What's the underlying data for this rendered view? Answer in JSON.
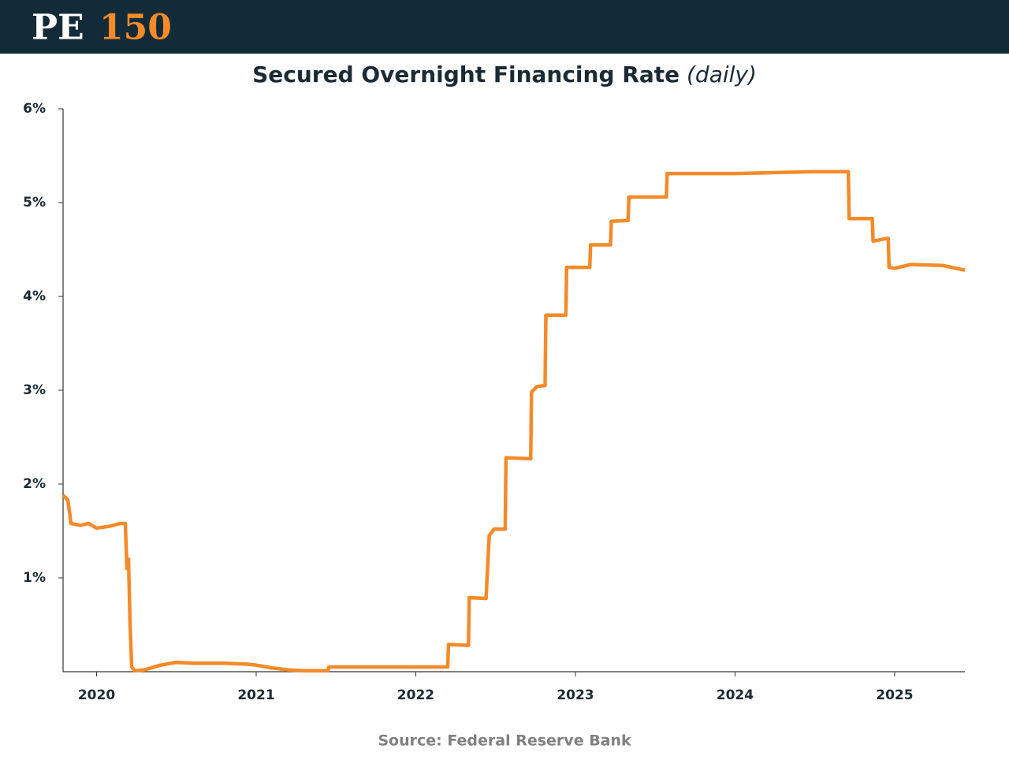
{
  "header": {
    "logo_left": "PE",
    "logo_right": "150"
  },
  "chart_data": {
    "type": "line",
    "title": "Secured Overnight Financing Rate",
    "subtitle": "(daily)",
    "source": "Source: Federal Reserve Bank",
    "x": [
      2019.79,
      2019.82,
      2019.84,
      2019.9,
      2019.95,
      2020.0,
      2020.08,
      2020.15,
      2020.18,
      2020.19,
      2020.2,
      2020.21,
      2020.22,
      2020.24,
      2020.3,
      2020.4,
      2020.5,
      2020.6,
      2020.8,
      2020.95,
      2021.0,
      2021.1,
      2021.2,
      2021.3,
      2021.45,
      2021.455,
      2021.8,
      2022.2,
      2022.205,
      2022.33,
      2022.335,
      2022.44,
      2022.46,
      2022.49,
      2022.56,
      2022.565,
      2022.72,
      2022.725,
      2022.76,
      2022.81,
      2022.815,
      2022.94,
      2022.945,
      2023.09,
      2023.095,
      2023.22,
      2023.225,
      2023.33,
      2023.335,
      2023.57,
      2023.575,
      2024.0,
      2024.5,
      2024.71,
      2024.715,
      2024.86,
      2024.865,
      2024.96,
      2024.965,
      2025.0,
      2025.1,
      2025.3,
      2025.44
    ],
    "series": [
      {
        "name": "SOFR",
        "color": "#f58a2a",
        "values": [
          1.88,
          1.83,
          1.58,
          1.56,
          1.58,
          1.53,
          1.55,
          1.58,
          1.58,
          1.1,
          1.2,
          0.5,
          0.05,
          0.01,
          0.02,
          0.07,
          0.1,
          0.09,
          0.09,
          0.08,
          0.07,
          0.04,
          0.02,
          0.01,
          0.01,
          0.05,
          0.05,
          0.05,
          0.29,
          0.28,
          0.79,
          0.78,
          1.45,
          1.52,
          1.52,
          2.28,
          2.27,
          2.98,
          3.04,
          3.05,
          3.8,
          3.8,
          4.31,
          4.31,
          4.55,
          4.55,
          4.8,
          4.81,
          5.06,
          5.06,
          5.31,
          5.31,
          5.33,
          5.33,
          4.83,
          4.83,
          4.59,
          4.62,
          4.31,
          4.3,
          4.34,
          4.33,
          4.28
        ]
      }
    ],
    "xlim": [
      2019.79,
      2025.44
    ],
    "xticks": [
      2020,
      2021,
      2022,
      2023,
      2024,
      2025
    ],
    "ylim": [
      0,
      6
    ],
    "yticks": [
      {
        "value": 1,
        "label": "1%"
      },
      {
        "value": 2,
        "label": "2%"
      },
      {
        "value": 3,
        "label": "3%"
      },
      {
        "value": 4,
        "label": "4%"
      },
      {
        "value": 5,
        "label": "5%"
      },
      {
        "value": 6,
        "label": "6%"
      }
    ],
    "grid": false
  }
}
